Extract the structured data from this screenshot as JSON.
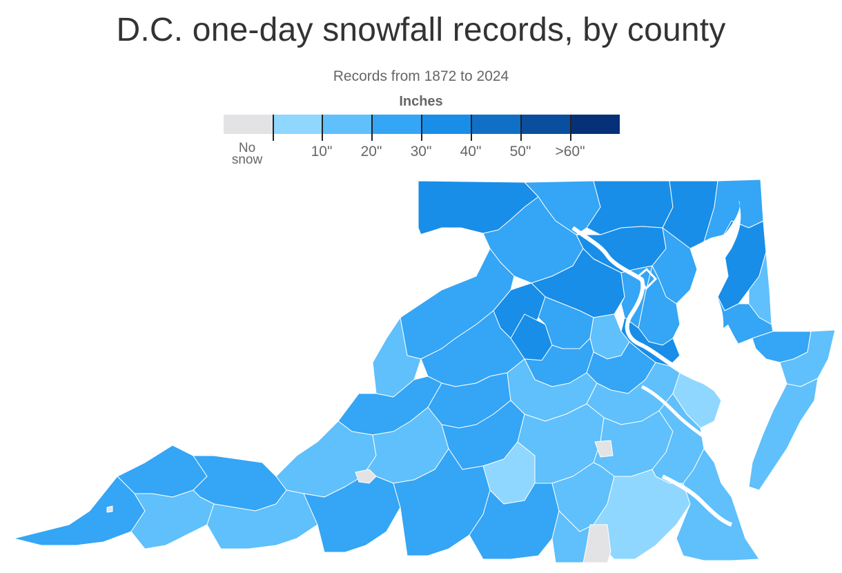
{
  "title": "D.C. one-day snowfall records, by county",
  "subtitle": "Records from 1872 to 2024",
  "legend": {
    "title": "Inches",
    "no_snow_line1": "No",
    "no_snow_line2": "snow",
    "ticks": [
      "10\"",
      "20\"",
      "30\"",
      "40\"",
      "50\"",
      ">60\""
    ],
    "colors": {
      "no_snow": "#e3e3e5",
      "bin_0_10": "#8fd7ff",
      "bin_10_20": "#5fc0fb",
      "bin_20_30": "#35a5f5",
      "bin_30_40": "#188ee8",
      "bin_40_50": "#0f70c6",
      "bin_50_60": "#0a4e9e",
      "bin_60_plus": "#063078"
    }
  }
}
